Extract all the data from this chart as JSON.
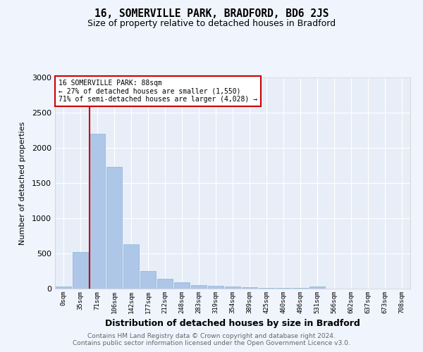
{
  "title": "16, SOMERVILLE PARK, BRADFORD, BD6 2JS",
  "subtitle": "Size of property relative to detached houses in Bradford",
  "xlabel": "Distribution of detached houses by size in Bradford",
  "ylabel": "Number of detached properties",
  "bar_color": "#aec6e8",
  "bar_edge_color": "#8ab4d8",
  "bg_color": "#e8eef8",
  "grid_color": "#ffffff",
  "fig_bg_color": "#f0f4fc",
  "categories": [
    "0sqm",
    "35sqm",
    "71sqm",
    "106sqm",
    "142sqm",
    "177sqm",
    "212sqm",
    "248sqm",
    "283sqm",
    "319sqm",
    "354sqm",
    "389sqm",
    "425sqm",
    "460sqm",
    "496sqm",
    "531sqm",
    "566sqm",
    "602sqm",
    "637sqm",
    "673sqm",
    "708sqm"
  ],
  "values": [
    30,
    520,
    2200,
    1730,
    630,
    255,
    140,
    90,
    55,
    40,
    30,
    20,
    15,
    10,
    8,
    30,
    5,
    5,
    3,
    2,
    2
  ],
  "ylim": [
    0,
    3000
  ],
  "yticks": [
    0,
    500,
    1000,
    1500,
    2000,
    2500,
    3000
  ],
  "property_label": "16 SOMERVILLE PARK: 88sqm",
  "annotation_line1": "← 27% of detached houses are smaller (1,550)",
  "annotation_line2": "71% of semi-detached houses are larger (4,028) →",
  "annotation_box_color": "#ffffff",
  "annotation_box_edge_color": "#cc0000",
  "red_line_color": "#cc0000",
  "footer1": "Contains HM Land Registry data © Crown copyright and database right 2024.",
  "footer2": "Contains public sector information licensed under the Open Government Licence v3.0."
}
